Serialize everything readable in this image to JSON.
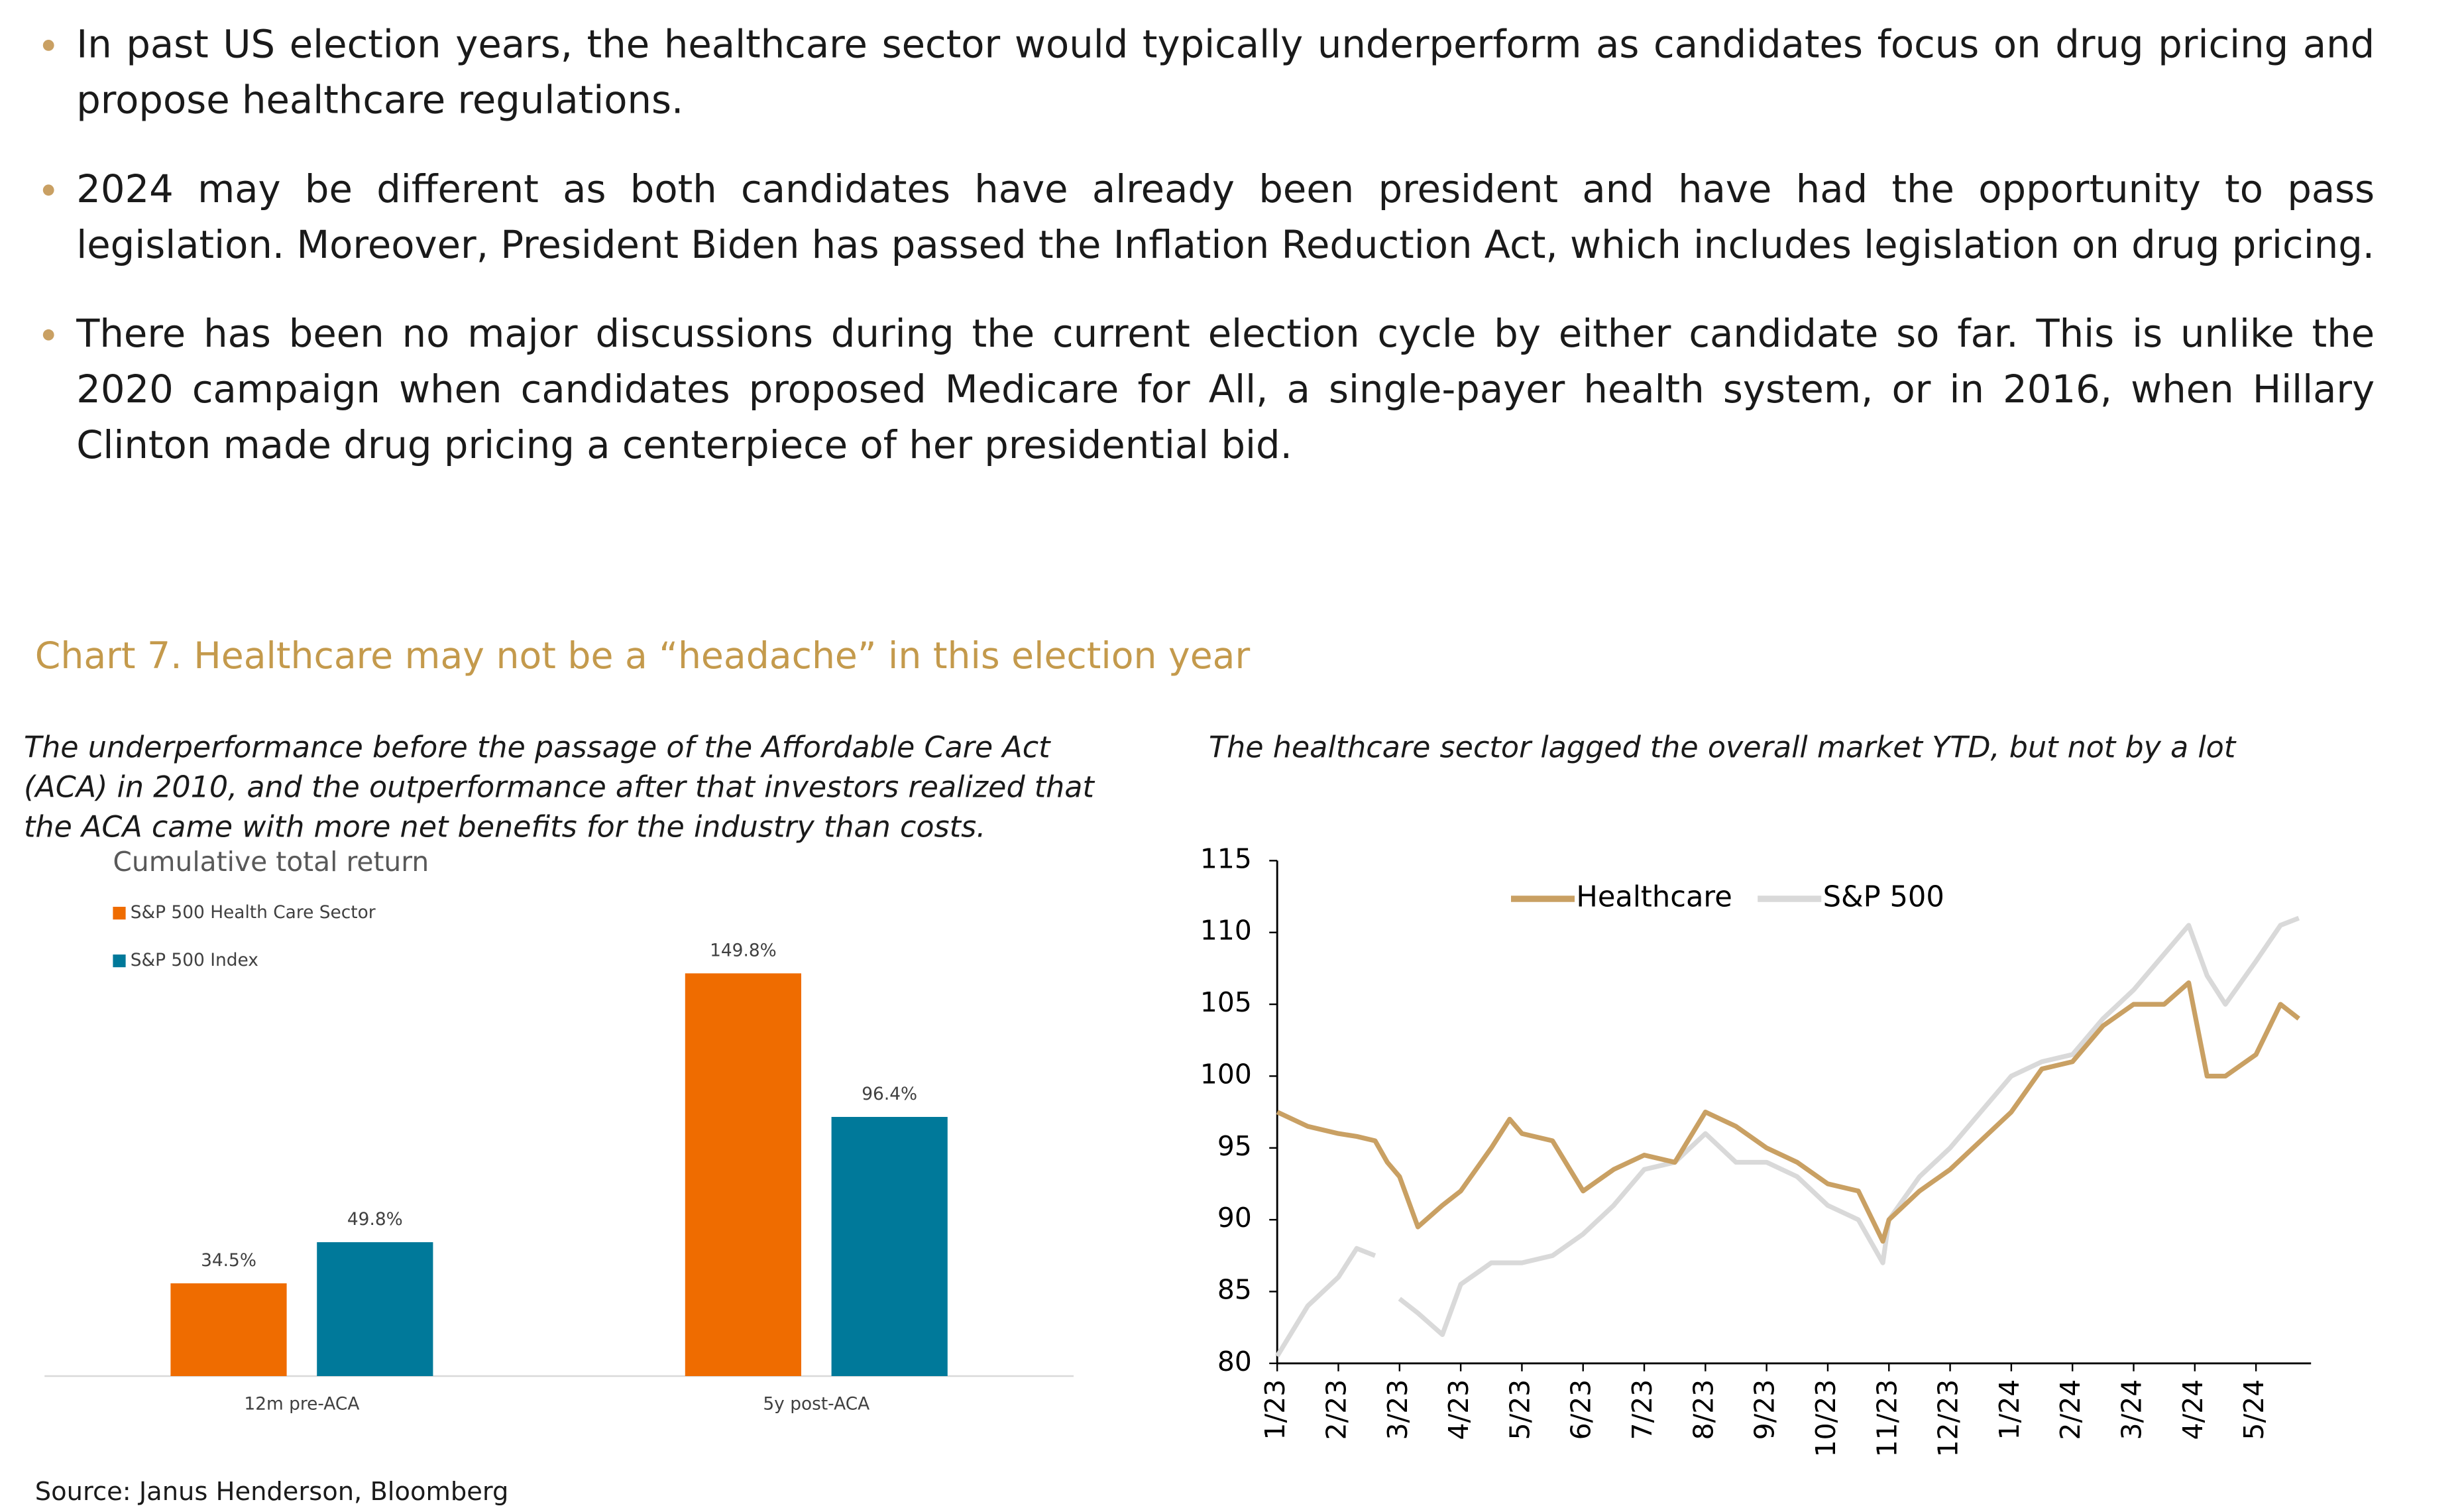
{
  "bullets": [
    "In past US election years, the healthcare sector would typically underperform as candidates focus on drug pricing and propose healthcare regulations.",
    "2024 may be different as both candidates have already been president and have had the opportunity to pass legislation. Moreover, President Biden has passed the Inflation Reduction Act, which includes legislation on drug pricing.",
    "There has been no major discussions during the current election cycle by either candidate so far. This is unlike the 2020 campaign when candidates proposed Medicare for All, a single-payer health system, or in 2016, when Hillary Clinton made drug pricing a centerpiece of her presidential bid."
  ],
  "section_title": "Chart 7. Healthcare may not be a “headache” in this election year",
  "source": "Source: Janus Henderson, Bloomberg",
  "chart_data": [
    {
      "type": "bar",
      "subtitle": "The underperformance before the passage of the Affordable Care Act (ACA) in 2010, and the outperformance after that investors realized that the ACA came with more net benefits for the industry than costs.",
      "title": "Cumulative total return",
      "categories": [
        "12m pre-ACA",
        "5y post-ACA"
      ],
      "series": [
        {
          "name": "S&P 500 Health Care Sector",
          "color": "#ef6c00",
          "values": [
            34.5,
            149.8
          ],
          "value_labels": [
            "34.5%",
            "149.8%"
          ]
        },
        {
          "name": "S&P 500 Index",
          "color": "#00799a",
          "values": [
            49.8,
            96.4
          ],
          "value_labels": [
            "49.8%",
            "96.4%"
          ]
        }
      ]
    },
    {
      "type": "line",
      "subtitle": "The healthcare sector lagged the overall market YTD, but not by a lot",
      "x": [
        0,
        0.5,
        1,
        1.3,
        1.6,
        1.8,
        2,
        2.3,
        2.7,
        3,
        3.5,
        3.8,
        4,
        4.5,
        5,
        5.5,
        6,
        6.5,
        7,
        7.5,
        8,
        8.5,
        9,
        9.5,
        9.9,
        10,
        10.5,
        11,
        11.5,
        12,
        12.5,
        13,
        13.5,
        14,
        14.5,
        14.9,
        15.2,
        15.5,
        16,
        16.4,
        16.7
      ],
      "xlim": [
        0,
        16.9
      ],
      "xticks": [
        {
          "value": 0,
          "label": "1/23"
        },
        {
          "value": 1,
          "label": "2/23"
        },
        {
          "value": 2,
          "label": "3/23"
        },
        {
          "value": 3,
          "label": "4/23"
        },
        {
          "value": 4,
          "label": "5/23"
        },
        {
          "value": 5,
          "label": "6/23"
        },
        {
          "value": 6,
          "label": "7/23"
        },
        {
          "value": 7,
          "label": "8/23"
        },
        {
          "value": 8,
          "label": "9/23"
        },
        {
          "value": 9,
          "label": "10/23"
        },
        {
          "value": 10,
          "label": "11/23"
        },
        {
          "value": 11,
          "label": "12/23"
        },
        {
          "value": 12,
          "label": "1/24"
        },
        {
          "value": 13,
          "label": "2/24"
        },
        {
          "value": 14,
          "label": "3/24"
        },
        {
          "value": 15,
          "label": "4/24"
        },
        {
          "value": 16,
          "label": "5/24"
        }
      ],
      "ylim": [
        80,
        115
      ],
      "yticks": [
        80,
        85,
        90,
        95,
        100,
        105,
        110,
        115
      ],
      "series": [
        {
          "name": "Healthcare",
          "color": "#c9a063",
          "values": [
            97.5,
            96.5,
            96,
            95.8,
            95.5,
            94,
            93,
            89.5,
            91,
            92,
            95,
            97,
            96,
            95.5,
            92,
            93.5,
            94.5,
            94,
            97.5,
            96.5,
            95,
            94,
            92.5,
            92,
            88.5,
            90,
            92,
            93.5,
            95.5,
            97.5,
            100.5,
            101,
            103.5,
            105,
            105,
            106.5,
            100,
            100,
            101.5,
            105,
            104
          ]
        },
        {
          "name": "S&P 500",
          "color": "#d9d9d9",
          "values": [
            80.5,
            84,
            86,
            88,
            87.5,
            null,
            84.5,
            83.5,
            82,
            85.5,
            87,
            87,
            87,
            87.5,
            89,
            91,
            93.5,
            94,
            96,
            94,
            94,
            93,
            91,
            90,
            87,
            90,
            93,
            95,
            97.5,
            100,
            101,
            101.5,
            104,
            106,
            108.5,
            110.5,
            107,
            105,
            108,
            110.5,
            111
          ]
        }
      ]
    }
  ]
}
